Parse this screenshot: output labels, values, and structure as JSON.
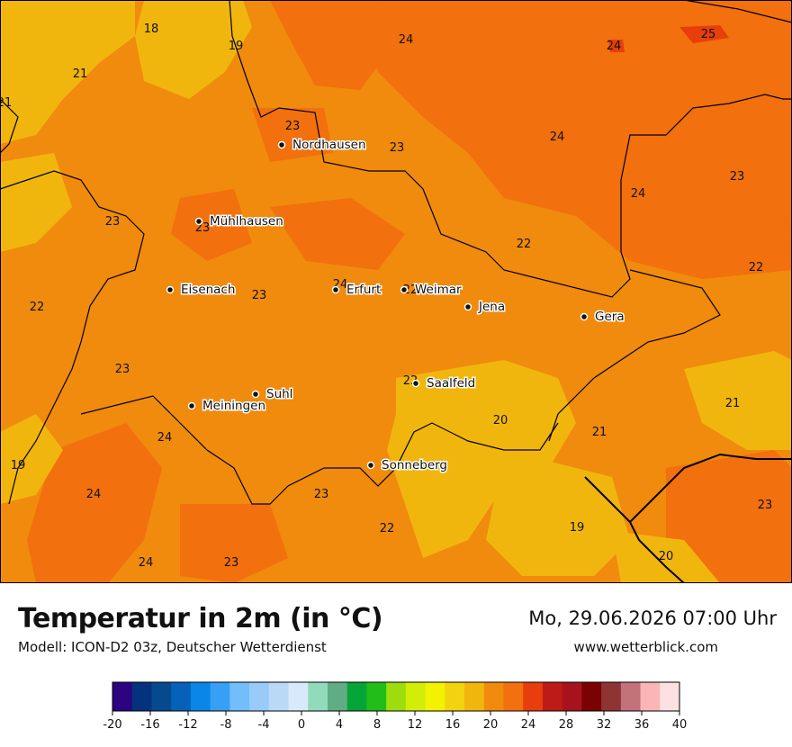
{
  "header": {
    "title": "Temperatur in 2m (in °C)",
    "model": "Modell: ICON-D2 03z, Deutscher Wetterdienst",
    "datetime": "Mo, 29.06.2026 07:00 Uhr",
    "website": "www.wetterblick.com"
  },
  "cities": [
    {
      "name": "Nordhausen"
    },
    {
      "name": "Mühlhausen"
    },
    {
      "name": "Eisenach"
    },
    {
      "name": "Erfurt"
    },
    {
      "name": "Weimar"
    },
    {
      "name": "Jena"
    },
    {
      "name": "Gera"
    },
    {
      "name": "Saalfeld"
    },
    {
      "name": "Suhl"
    },
    {
      "name": "Meiningen"
    },
    {
      "name": "Sonneberg"
    }
  ],
  "values": [
    "18",
    "19",
    "24",
    "24",
    "25",
    "21",
    "21",
    "23",
    "23",
    "24",
    "23",
    "24",
    "23",
    "23",
    "22",
    "22",
    "22",
    "24",
    "23",
    "22",
    "23",
    "22",
    "21",
    "20",
    "21",
    "24",
    "19",
    "24",
    "23",
    "19",
    "22",
    "23",
    "24",
    "23",
    "20"
  ],
  "legend": {
    "ticks": [
      "-20",
      "-16",
      "-12",
      "-8",
      "-4",
      "0",
      "4",
      "8",
      "12",
      "16",
      "20",
      "24",
      "28",
      "32",
      "36",
      "40"
    ],
    "colors": [
      "#2c0380",
      "#05327e",
      "#064a8d",
      "#0562b8",
      "#0a85e8",
      "#35a0f5",
      "#72bdfa",
      "#98cbf7",
      "#bad9f7",
      "#d8e9fb",
      "#91dbbb",
      "#60ad85",
      "#06a538",
      "#22bd17",
      "#9edd0d",
      "#d2ed07",
      "#f2f202",
      "#f1d30f",
      "#f1b60e",
      "#f08b0d",
      "#f2700d",
      "#e73e0b",
      "#bd1b17",
      "#a8121d",
      "#7a0203",
      "#8e3435",
      "#c3727a",
      "#fab5b6",
      "#fde0e1"
    ]
  }
}
